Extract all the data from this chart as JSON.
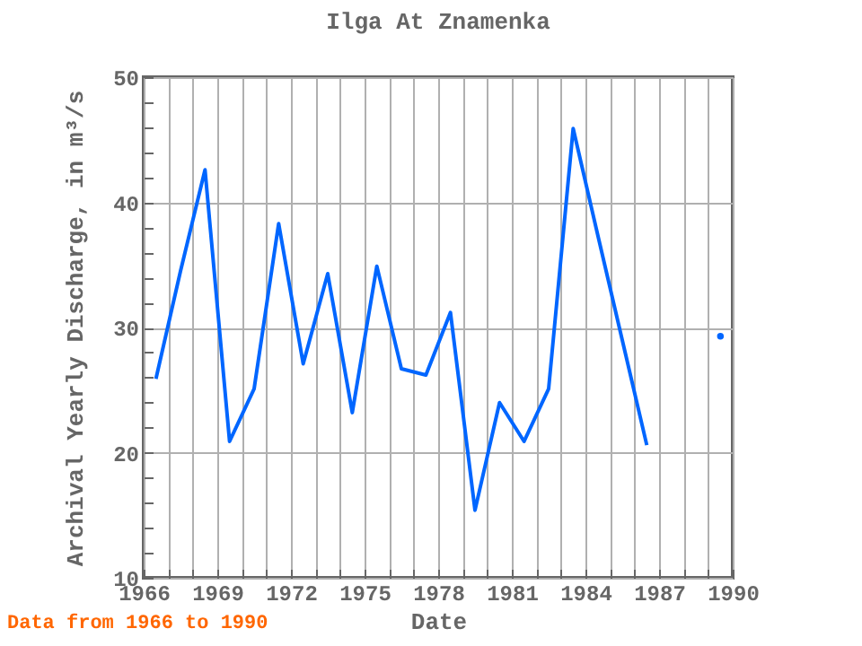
{
  "chart_data": {
    "type": "line",
    "title": "Ilga At Znamenka",
    "xlabel": "Date",
    "ylabel": "Archival Yearly Discharge, in m³/s",
    "annotations": [
      "Data from 1966 to 1990"
    ],
    "x": [
      1966.5,
      1967.5,
      1968.5,
      1969.5,
      1970.5,
      1971.5,
      1972.5,
      1973.5,
      1974.5,
      1975.5,
      1976.5,
      1977.5,
      1978.5,
      1979.5,
      1980.5,
      1981.5,
      1982.5,
      1983.5,
      1984.5,
      1985.5,
      1986.5,
      1987.5,
      1988.5,
      1989.5
    ],
    "series": [
      {
        "color": "#0066ff",
        "values": [
          25.9,
          34.5,
          42.6,
          20.9,
          25.1,
          38.3,
          27.1,
          34.3,
          23.2,
          34.9,
          26.7,
          26.2,
          31.2,
          15.4,
          24.0,
          20.9,
          25.1,
          45.9,
          37.4,
          29.0,
          20.6,
          null,
          null,
          29.3
        ]
      }
    ],
    "xlim": [
      1966,
      1990
    ],
    "ylim": [
      10,
      50
    ],
    "xticks": [
      1966,
      {
        "value": 1967,
        "label": null
      },
      {
        "value": 1968,
        "label": null
      },
      1969,
      {
        "value": 1970,
        "label": null
      },
      {
        "value": 1971,
        "label": null
      },
      1972,
      {
        "value": 1973,
        "label": null
      },
      {
        "value": 1974,
        "label": null
      },
      1975,
      {
        "value": 1976,
        "label": null
      },
      {
        "value": 1977,
        "label": null
      },
      1978,
      {
        "value": 1979,
        "label": null
      },
      {
        "value": 1980,
        "label": null
      },
      1981,
      {
        "value": 1982,
        "label": null
      },
      {
        "value": 1983,
        "label": null
      },
      1984,
      {
        "value": 1985,
        "label": null
      },
      {
        "value": 1986,
        "label": null
      },
      1987,
      {
        "value": 1988,
        "label": null
      },
      {
        "value": 1989,
        "label": null
      },
      1990
    ],
    "yticks": [
      10,
      {
        "value": 12,
        "label": null
      },
      {
        "value": 14,
        "label": null
      },
      {
        "value": 16,
        "label": null
      },
      {
        "value": 18,
        "label": null
      },
      20,
      {
        "value": 22,
        "label": null
      },
      {
        "value": 24,
        "label": null
      },
      {
        "value": 26,
        "label": null
      },
      {
        "value": 28,
        "label": null
      },
      30,
      {
        "value": 32,
        "label": null
      },
      {
        "value": 34,
        "label": null
      },
      {
        "value": 36,
        "label": null
      },
      {
        "value": 38,
        "label": null
      },
      40,
      {
        "value": 42,
        "label": null
      },
      {
        "value": 44,
        "label": null
      },
      {
        "value": 46,
        "label": null
      },
      {
        "value": 48,
        "label": null
      },
      50
    ],
    "grid": true,
    "line_style": "solid",
    "marker": "none"
  }
}
